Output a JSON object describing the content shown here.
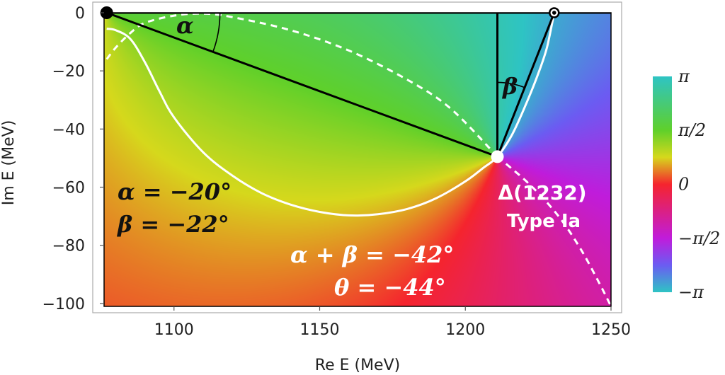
{
  "chart_data": {
    "type": "heatmap",
    "title": "",
    "xlabel": "Re E (MeV)",
    "ylabel": "Im E (MeV)",
    "xlim": [
      1076,
      1250
    ],
    "ylim": [
      -101,
      0
    ],
    "x_ticks": [
      {
        "value": 1100,
        "label": "1100"
      },
      {
        "value": 1150,
        "label": "1150"
      },
      {
        "value": 1200,
        "label": "1200"
      },
      {
        "value": 1250,
        "label": "1250"
      }
    ],
    "y_ticks": [
      {
        "value": 0,
        "label": "0"
      },
      {
        "value": -20,
        "label": "−20"
      },
      {
        "value": -40,
        "label": "−40"
      },
      {
        "value": -60,
        "label": "−60"
      },
      {
        "value": -80,
        "label": "−80"
      },
      {
        "value": -100,
        "label": "−100"
      }
    ],
    "grid": false,
    "colorbar": {
      "quantity": "phase",
      "range": [
        -3.14159,
        3.14159
      ],
      "ticks": [
        {
          "value": 3.14159,
          "label": "π"
        },
        {
          "value": 1.5708,
          "label": "π/2"
        },
        {
          "value": 0,
          "label": "0"
        },
        {
          "value": -1.5708,
          "label": "−π/2"
        },
        {
          "value": -3.14159,
          "label": "−π"
        }
      ],
      "colors": {
        "phase_pi": "#2ec4c4",
        "phase_half_pi": "#5fd02a",
        "phase_quarter_pi": "#d6d81c",
        "phase_zero": "#f5242e",
        "phase_minus_half_pi": "#c01cdb",
        "phase_minus_three_quarter_pi": "#6b5cf2",
        "phase_minus_pi": "#2ec4c4"
      }
    },
    "points": {
      "threshold": {
        "x": 1076.9,
        "y": 0
      },
      "pole": {
        "x": 1211,
        "y": -49.5
      },
      "real_point": {
        "x": 1230.5,
        "y": 0
      }
    },
    "curves": {
      "white_solid": [
        [
          1076.9,
          -5.5
        ],
        [
          1080,
          -6
        ],
        [
          1085,
          -9
        ],
        [
          1090,
          -17
        ],
        [
          1095,
          -27
        ],
        [
          1100,
          -36
        ],
        [
          1110,
          -48
        ],
        [
          1120,
          -56
        ],
        [
          1130,
          -62
        ],
        [
          1140,
          -66
        ],
        [
          1150,
          -68.5
        ],
        [
          1160,
          -69.7
        ],
        [
          1170,
          -69.3
        ],
        [
          1180,
          -67.5
        ],
        [
          1190,
          -63.8
        ],
        [
          1200,
          -58
        ],
        [
          1206,
          -53.5
        ],
        [
          1211,
          -49.5
        ],
        [
          1216,
          -42
        ],
        [
          1221,
          -31
        ],
        [
          1225,
          -21
        ],
        [
          1228,
          -12
        ],
        [
          1230.5,
          0
        ]
      ],
      "white_dashed_upper": [
        [
          1076.9,
          -16
        ],
        [
          1080,
          -12
        ],
        [
          1085,
          -7
        ],
        [
          1090,
          -3.5
        ],
        [
          1100,
          -1
        ],
        [
          1110,
          -0.3
        ],
        [
          1120,
          -1.5
        ],
        [
          1140,
          -6
        ],
        [
          1160,
          -13
        ],
        [
          1180,
          -23
        ],
        [
          1195,
          -33
        ],
        [
          1211,
          -49.5
        ]
      ],
      "white_dashed_lower": [
        [
          1211,
          -49.5
        ],
        [
          1222,
          -59
        ],
        [
          1232,
          -70
        ],
        [
          1240,
          -82
        ],
        [
          1247,
          -95
        ],
        [
          1250,
          -101
        ]
      ]
    },
    "annotations": {
      "alpha_eq": "α = −20°",
      "beta_eq": "β = −22°",
      "sum_eq": "α + β = −42°",
      "theta_eq": "θ = −44°",
      "alpha_symbol": "α",
      "beta_symbol": "β",
      "resonance_name": "Δ(1232)",
      "resonance_type": "Type Ia"
    }
  }
}
